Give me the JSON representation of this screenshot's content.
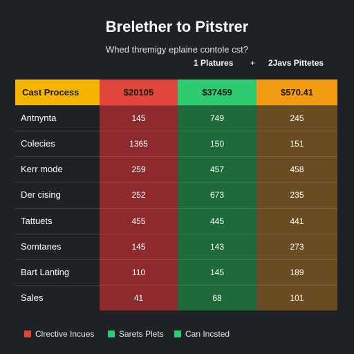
{
  "header": {
    "title": "Brelether to Pitstrer",
    "subtitle": "Whed thremigy eplaine contole cst?",
    "meta_left": "1 Platures",
    "meta_sep": "+",
    "meta_right": "2Javs Pittetes"
  },
  "colors": {
    "accent_yellow": "#f4b400",
    "red": "#e2463b",
    "green": "#2ecc71",
    "orange": "#f39c12"
  },
  "chart_data": {
    "type": "table",
    "title": "Brelether to Pitstrer",
    "columns": [
      "Cast Process",
      "$20105",
      "$37459",
      "$570.41"
    ],
    "rows": [
      {
        "label": "Antnynta",
        "values": [
          "145",
          "749",
          "245"
        ]
      },
      {
        "label": "Colecies",
        "values": [
          "1365",
          "150",
          "151"
        ]
      },
      {
        "label": "Kerr mode",
        "values": [
          "259",
          "457",
          "458"
        ]
      },
      {
        "label": "Der cising",
        "values": [
          "252",
          "673",
          "235"
        ]
      },
      {
        "label": "Tattuets",
        "values": [
          "455",
          "445",
          "441"
        ]
      },
      {
        "label": "Somtanes",
        "values": [
          "145",
          "143",
          "273"
        ]
      },
      {
        "label": "Bart Lanting",
        "values": [
          "110",
          "145",
          "189"
        ]
      },
      {
        "label": "Sales",
        "values": [
          "41",
          "68",
          "101"
        ]
      }
    ],
    "legend": [
      {
        "label": "Clrective Incues",
        "color": "#e2463b"
      },
      {
        "label": "Sarets Plets",
        "color": "#2ecc71"
      },
      {
        "label": "Can Incsted",
        "color": "#2ecc71"
      }
    ]
  }
}
